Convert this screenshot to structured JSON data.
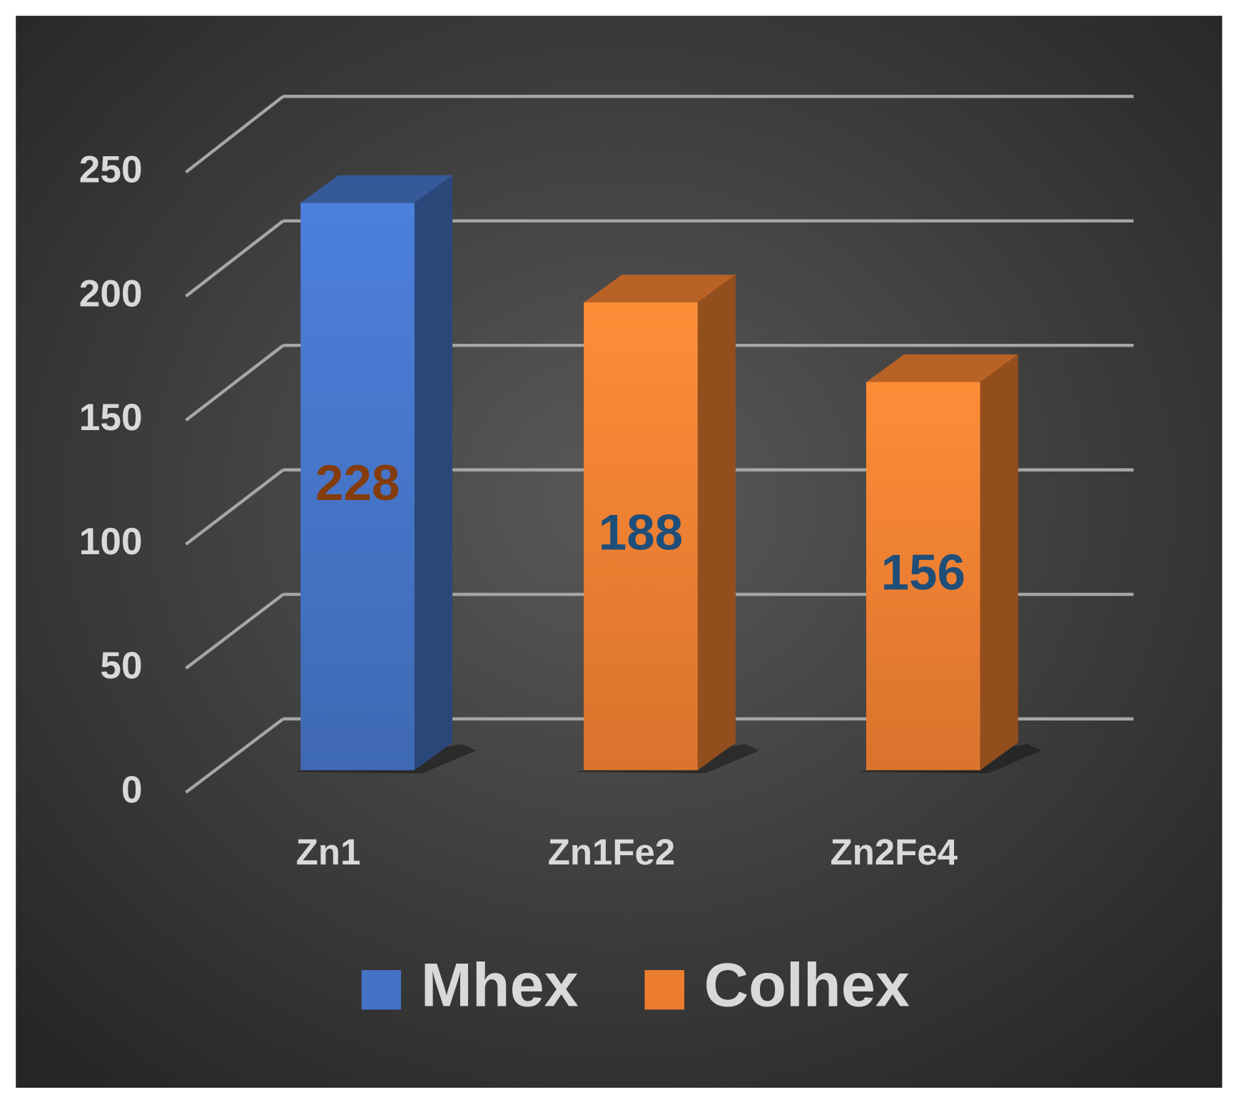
{
  "chart_data": {
    "type": "bar3d",
    "categories": [
      "Zn1",
      "Zn1Fe2",
      "Zn2Fe4"
    ],
    "series": [
      {
        "name": "Mhex",
        "color": "#4472c4",
        "label_color": "#843c0c",
        "values": [
          228,
          null,
          null
        ]
      },
      {
        "name": "Colhex",
        "color": "#ed7d31",
        "label_color": "#1f4e79",
        "values": [
          null,
          188,
          156
        ]
      }
    ],
    "ylim": [
      0,
      250
    ],
    "yticks": [
      0,
      50,
      100,
      150,
      200,
      250
    ],
    "grid": true,
    "legend": "bottom"
  }
}
